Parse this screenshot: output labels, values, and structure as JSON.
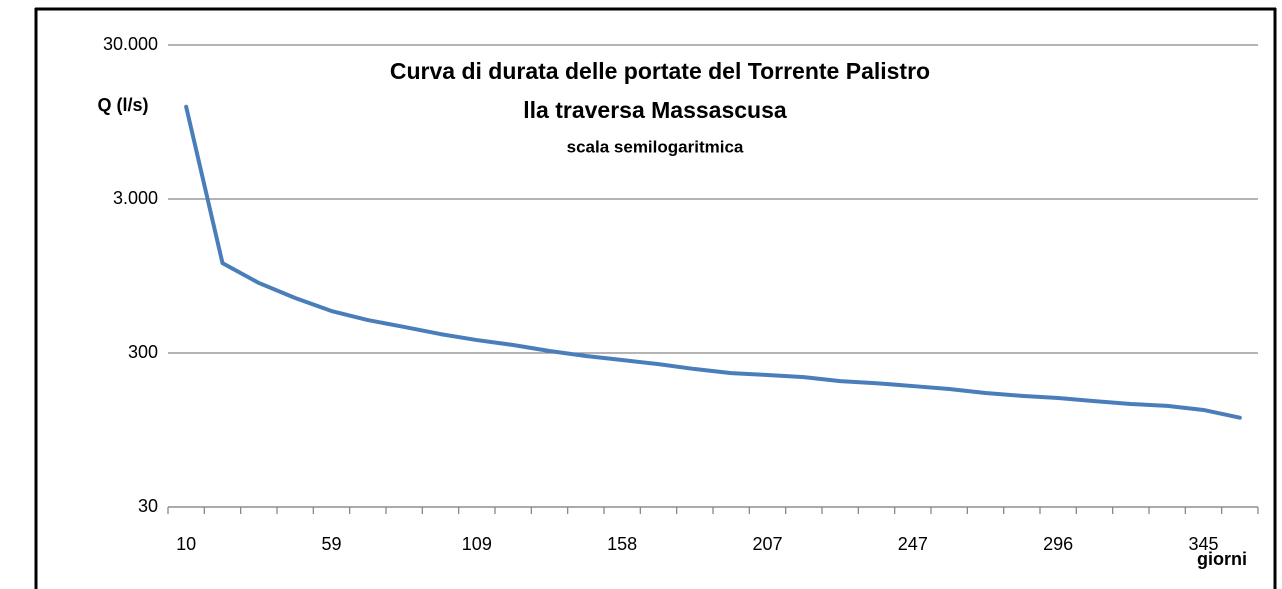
{
  "chart_data": {
    "type": "line",
    "title": "Curva di durata delle portate del Torrente Palistro",
    "subtitle": "lla traversa Massascusa",
    "annotation": "scala semilogaritmica",
    "y_label": "Q (l/s)",
    "x_label": "giorni",
    "categories": [
      "10",
      null,
      null,
      null,
      "59",
      null,
      null,
      null,
      "109",
      null,
      null,
      null,
      "158",
      null,
      null,
      null,
      "207",
      null,
      null,
      null,
      "247",
      null,
      null,
      null,
      "296",
      null,
      null,
      null,
      "345",
      null
    ],
    "series": [
      {
        "color": "#4a7ebb",
        "values": [
          11900,
          1150,
          855,
          683,
          562,
          491,
          443,
          398,
          364,
          338,
          309,
          287,
          270,
          254,
          236,
          222,
          216,
          209,
          197,
          191,
          183,
          175,
          165,
          158,
          153,
          146,
          140,
          136,
          128,
          114
        ]
      }
    ],
    "ylim": [
      30,
      30000
    ],
    "yticks": [
      30,
      300,
      {
        "value": 3000,
        "label": "3.000"
      },
      {
        "value": 30000,
        "label": "30.000"
      }
    ],
    "log_y": true,
    "grid": true
  }
}
